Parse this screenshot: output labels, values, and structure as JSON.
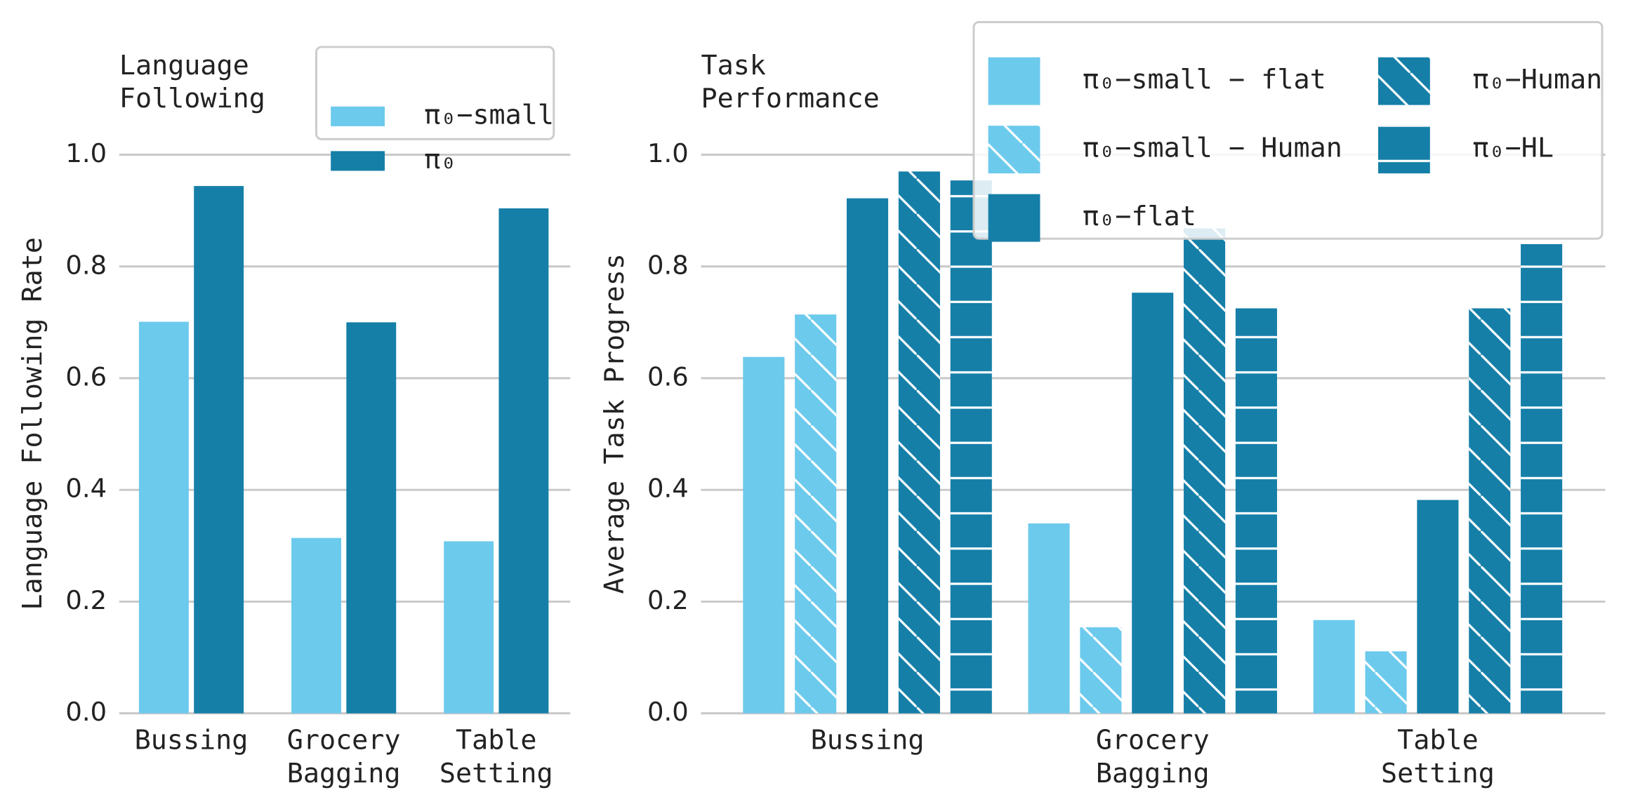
{
  "chart_data": [
    {
      "type": "bar",
      "title": "Language Following",
      "ylabel": "Language Following Rate",
      "categories": [
        "Bussing",
        "Grocery Bagging",
        "Table Setting"
      ],
      "series": [
        {
          "name": "π₀−small",
          "color": "#6ccaec",
          "hatch": "none",
          "values": [
            0.701,
            0.314,
            0.308
          ]
        },
        {
          "name": "π₀",
          "color": "#157fa8",
          "hatch": "none",
          "values": [
            0.944,
            0.7,
            0.904
          ]
        }
      ],
      "ylim": [
        0,
        1
      ],
      "yticks": [
        {
          "value": 0,
          "label": "0.0"
        },
        0.2,
        0.4,
        0.6,
        0.8,
        {
          "value": 1,
          "label": "1.0"
        }
      ],
      "grid": true,
      "legend": "upper right",
      "legend_columns": 1
    },
    {
      "type": "bar",
      "title": "Task Performance",
      "ylabel": "Average Task Progress",
      "categories": [
        "Bussing",
        "Grocery Bagging",
        "Table Setting"
      ],
      "series": [
        {
          "name": "π₀−small − flat",
          "color": "#6ccaec",
          "hatch": "none",
          "values": [
            0.638,
            0.34,
            0.167
          ]
        },
        {
          "name": "π₀−small − Human",
          "color": "#6ccaec",
          "hatch": "\\",
          "values": [
            0.714,
            0.154,
            0.111
          ]
        },
        {
          "name": "π₀−flat",
          "color": "#157fa8",
          "hatch": "none",
          "values": [
            0.922,
            0.753,
            0.382
          ]
        },
        {
          "name": "π₀−Human",
          "color": "#157fa8",
          "hatch": "\\",
          "values": [
            0.97,
            0.868,
            0.725
          ]
        },
        {
          "name": "π₀−HL",
          "color": "#157fa8",
          "hatch": "-",
          "values": [
            0.954,
            0.725,
            0.84
          ]
        }
      ],
      "ylim": [
        0,
        1
      ],
      "yticks": [
        {
          "value": 0,
          "label": "0.0"
        },
        0.2,
        0.4,
        0.6,
        0.8,
        {
          "value": 1,
          "label": "1.0"
        }
      ],
      "grid": true,
      "legend": "upper right",
      "legend_columns": 2
    }
  ]
}
